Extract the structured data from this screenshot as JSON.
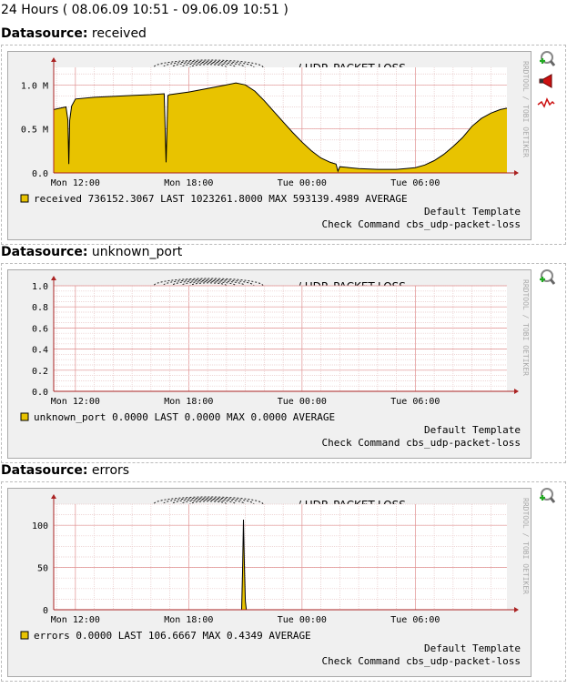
{
  "page": {
    "range_title": "24 Hours ( 08.06.09 10:51 - 09.06.09 10:51 )"
  },
  "colors": {
    "area_fill": "#e8c300",
    "area_line": "#000000",
    "grid_minor": "#e8c8c8",
    "grid_major": "#e09090",
    "axis": "#aa2222",
    "panel_bg": "#f0f0f0"
  },
  "graphs": [
    {
      "heading_label": "Datasource:",
      "heading_value": "received",
      "title": "/  UDP_PACKET-LOSS",
      "watermark": "RRDTOOL / TOBI OETIKER",
      "icons": [
        "zoom-icon",
        "alert-horn-icon",
        "trend-icon"
      ],
      "legend": {
        "name": "received",
        "last": "736152.3067",
        "last_label": "LAST",
        "max": "1023261.8000",
        "max_label": "MAX",
        "avg": "593139.4989",
        "avg_label": "AVERAGE"
      },
      "template": "Default Template",
      "command": "Check Command cbs_udp-packet-loss"
    },
    {
      "heading_label": "Datasource:",
      "heading_value": "unknown_port",
      "title": "/  UDP_PACKET-LOSS",
      "watermark": "RRDTOOL / TOBI OETIKER",
      "icons": [
        "zoom-icon"
      ],
      "legend": {
        "name": "unknown_port",
        "last": "0.0000",
        "last_label": "LAST",
        "max": "0.0000",
        "max_label": "MAX",
        "avg": "0.0000",
        "avg_label": "AVERAGE"
      },
      "template": "Default Template",
      "command": "Check Command cbs_udp-packet-loss"
    },
    {
      "heading_label": "Datasource:",
      "heading_value": "errors",
      "title": "/  UDP_PACKET-LOSS",
      "watermark": "RRDTOOL / TOBI OETIKER",
      "icons": [
        "zoom-icon"
      ],
      "legend": {
        "name": "errors",
        "last": "0.0000",
        "last_label": "LAST",
        "max": "106.6667",
        "max_label": "MAX",
        "avg": "0.4349",
        "avg_label": "AVERAGE"
      },
      "template": "Default Template",
      "command": "Check Command cbs_udp-packet-loss"
    }
  ],
  "chart_data": [
    {
      "type": "area",
      "x_unit": "hours",
      "xlim": [
        10.85,
        34.85
      ],
      "x_ticks": [
        {
          "x": 12,
          "label": "Mon 12:00"
        },
        {
          "x": 18,
          "label": "Mon 18:00"
        },
        {
          "x": 24,
          "label": "Tue 00:00"
        },
        {
          "x": 30,
          "label": "Tue 06:00"
        }
      ],
      "ylim": [
        0,
        1200000
      ],
      "y_ticks": [
        {
          "y": 0,
          "label": "0.0"
        },
        {
          "y": 500000,
          "label": "0.5 M"
        },
        {
          "y": 1000000,
          "label": "1.0 M"
        }
      ],
      "series": [
        {
          "name": "received",
          "x": [
            10.85,
            11.5,
            11.6,
            11.65,
            11.7,
            11.8,
            12.0,
            13.0,
            14.0,
            15.0,
            16.0,
            16.7,
            16.8,
            16.9,
            17.0,
            18.0,
            19.0,
            20.0,
            20.5,
            21.0,
            21.5,
            22.0,
            22.5,
            23.0,
            23.5,
            24.0,
            24.5,
            25.0,
            25.5,
            25.8,
            25.9,
            26.0,
            26.5,
            27.0,
            28.0,
            29.0,
            29.5,
            30.0,
            30.5,
            31.0,
            31.5,
            32.0,
            32.5,
            33.0,
            33.5,
            34.0,
            34.5,
            34.85
          ],
          "values": [
            720000,
            750000,
            600000,
            100000,
            600000,
            760000,
            840000,
            860000,
            870000,
            880000,
            890000,
            900000,
            120000,
            880000,
            890000,
            920000,
            960000,
            1000000,
            1023000,
            1000000,
            930000,
            820000,
            700000,
            580000,
            460000,
            350000,
            250000,
            170000,
            120000,
            100000,
            20000,
            70000,
            60000,
            50000,
            40000,
            40000,
            50000,
            60000,
            90000,
            140000,
            210000,
            300000,
            400000,
            530000,
            620000,
            680000,
            720000,
            736000
          ]
        }
      ],
      "grid": true,
      "legend_position": "bottom"
    },
    {
      "type": "area",
      "x_unit": "hours",
      "xlim": [
        10.85,
        34.85
      ],
      "x_ticks": [
        {
          "x": 12,
          "label": "Mon 12:00"
        },
        {
          "x": 18,
          "label": "Mon 18:00"
        },
        {
          "x": 24,
          "label": "Tue 00:00"
        },
        {
          "x": 30,
          "label": "Tue 06:00"
        }
      ],
      "ylim": [
        0,
        1.0
      ],
      "y_ticks": [
        {
          "y": 0,
          "label": "0.0"
        },
        {
          "y": 0.2,
          "label": "0.2"
        },
        {
          "y": 0.4,
          "label": "0.4"
        },
        {
          "y": 0.6,
          "label": "0.6"
        },
        {
          "y": 0.8,
          "label": "0.8"
        },
        {
          "y": 1.0,
          "label": "1.0"
        }
      ],
      "series": [
        {
          "name": "unknown_port",
          "x": [
            10.85,
            34.85
          ],
          "values": [
            0,
            0
          ]
        }
      ],
      "grid": true,
      "legend_position": "bottom"
    },
    {
      "type": "area",
      "x_unit": "hours",
      "xlim": [
        10.85,
        34.85
      ],
      "x_ticks": [
        {
          "x": 12,
          "label": "Mon 12:00"
        },
        {
          "x": 18,
          "label": "Mon 18:00"
        },
        {
          "x": 24,
          "label": "Tue 00:00"
        },
        {
          "x": 30,
          "label": "Tue 06:00"
        }
      ],
      "ylim": [
        0,
        125
      ],
      "y_ticks": [
        {
          "y": 0,
          "label": "0"
        },
        {
          "y": 50,
          "label": "50"
        },
        {
          "y": 100,
          "label": "100"
        }
      ],
      "series": [
        {
          "name": "errors",
          "x": [
            10.85,
            20.8,
            20.85,
            20.9,
            20.95,
            21.0,
            21.05,
            34.85
          ],
          "values": [
            0,
            0,
            45,
            106.6667,
            50,
            10,
            0,
            0
          ]
        }
      ],
      "grid": true,
      "legend_position": "bottom"
    }
  ]
}
